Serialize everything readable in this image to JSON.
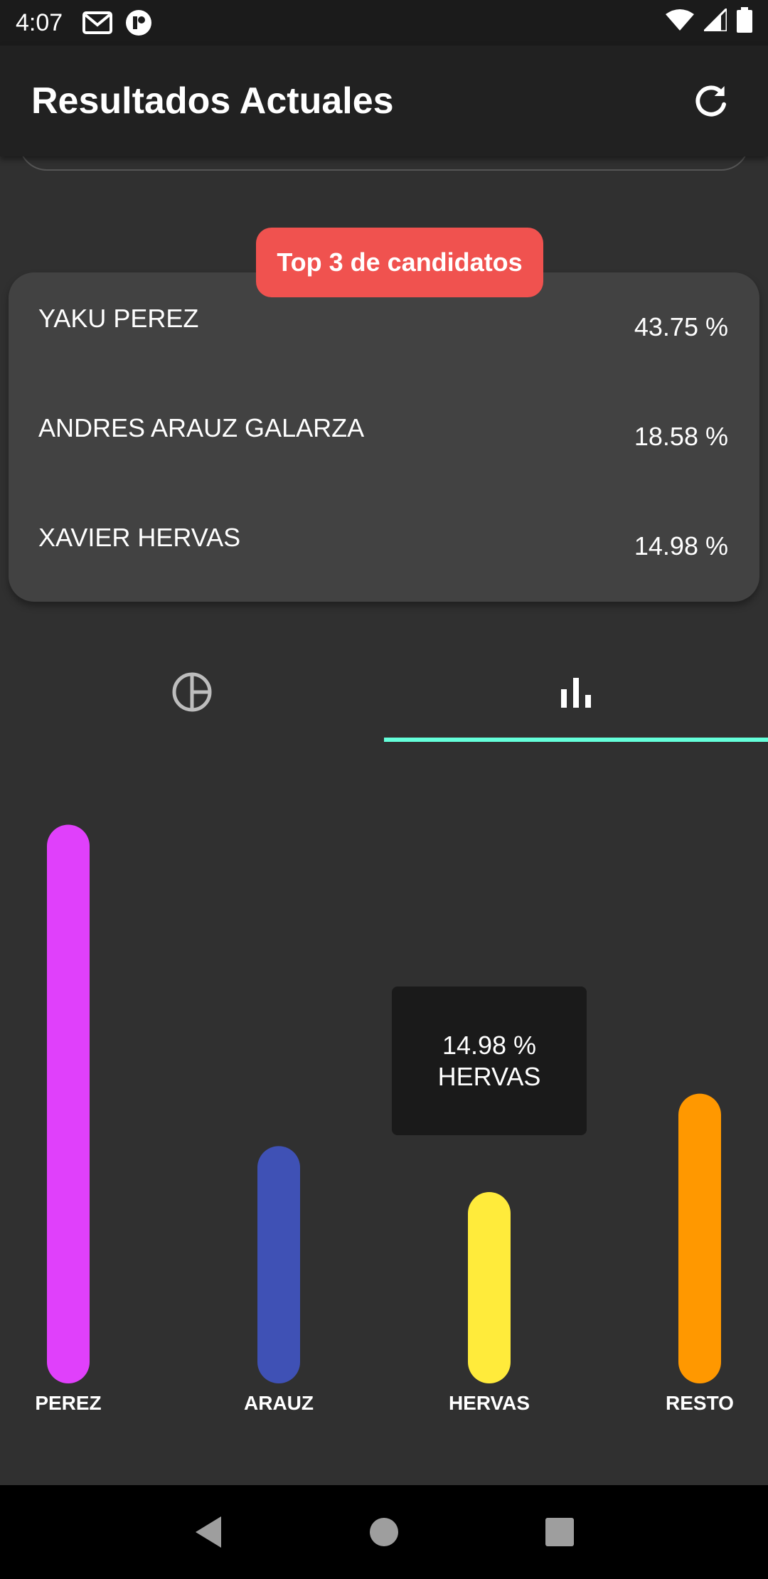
{
  "status_bar": {
    "time": "4:07"
  },
  "app_bar": {
    "title": "Resultados Actuales"
  },
  "top3": {
    "badge": "Top 3 de candidatos",
    "candidates": [
      {
        "name": "YAKU PEREZ",
        "percent": "43.75 %"
      },
      {
        "name": "ANDRES ARAUZ GALARZA",
        "percent": "18.58 %"
      },
      {
        "name": "XAVIER HERVAS",
        "percent": "14.98 %"
      }
    ]
  },
  "tabs": [
    {
      "icon": "pie-chart-icon",
      "selected": false
    },
    {
      "icon": "bar-chart-icon",
      "selected": true
    }
  ],
  "colors": {
    "accent": "#64ffda",
    "badge": "#f0524f"
  },
  "chart_data": {
    "type": "bar",
    "categories": [
      "PEREZ",
      "ARAUZ",
      "HERVAS",
      "RESTO"
    ],
    "values": [
      43.75,
      18.58,
      14.98,
      22.69
    ],
    "colors": [
      "#e040fb",
      "#3f51b5",
      "#ffeb3b",
      "#ff9800"
    ],
    "ylim": [
      0,
      45
    ],
    "grid": false,
    "tooltip": {
      "value": "14.98 %",
      "label": "HERVAS"
    }
  }
}
